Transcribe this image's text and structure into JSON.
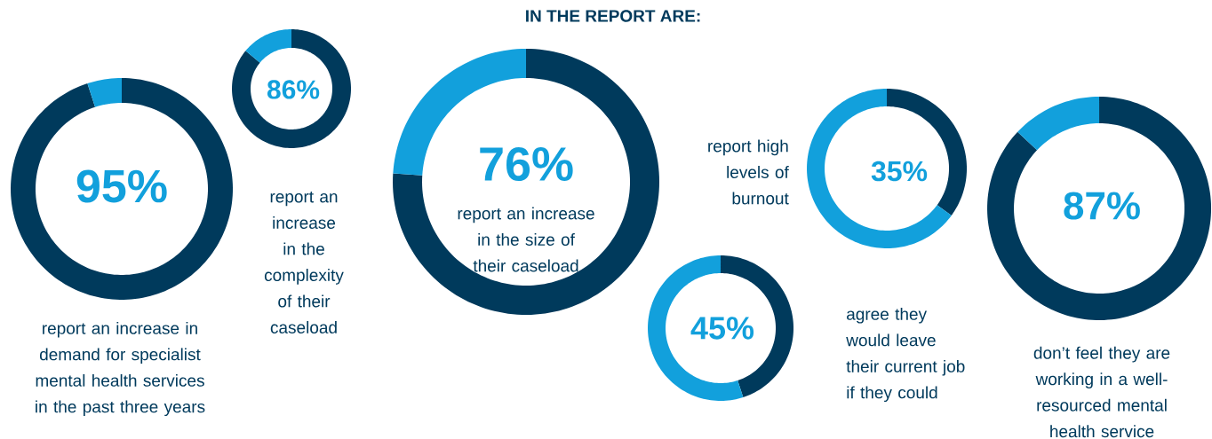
{
  "chart_data": [
    {
      "type": "donut",
      "categories": [
        null,
        null
      ],
      "values": [
        95,
        5
      ],
      "colors": [
        "#003a5c",
        "#12a0dc"
      ],
      "value_labels": [
        "95%",
        null
      ],
      "annotations": [
        "report an increase in demand for specialist mental health services in the past three years"
      ]
    },
    {
      "type": "donut",
      "categories": [
        null,
        null
      ],
      "values": [
        86,
        14
      ],
      "colors": [
        "#003a5c",
        "#12a0dc"
      ],
      "value_labels": [
        "86%",
        null
      ],
      "annotations": [
        "report an increase in the complexity of their caseload"
      ]
    },
    {
      "type": "donut",
      "categories": [
        null,
        null
      ],
      "values": [
        76,
        24
      ],
      "colors": [
        "#003a5c",
        "#12a0dc"
      ],
      "value_labels": [
        "76%",
        null
      ],
      "annotations": [
        "report an increase in the size of their caseload"
      ]
    },
    {
      "type": "donut",
      "categories": [
        null,
        null
      ],
      "values": [
        35,
        65
      ],
      "colors": [
        "#003a5c",
        "#12a0dc"
      ],
      "value_labels": [
        "35%",
        null
      ],
      "annotations": [
        "report high levels of burnout"
      ]
    },
    {
      "type": "donut",
      "categories": [
        null,
        null
      ],
      "values": [
        45,
        55
      ],
      "colors": [
        "#003a5c",
        "#12a0dc"
      ],
      "value_labels": [
        "45%",
        null
      ],
      "annotations": [
        "agree they would leave their current job if they could"
      ]
    },
    {
      "type": "donut",
      "categories": [
        null,
        null
      ],
      "values": [
        87,
        13
      ],
      "colors": [
        "#003a5c",
        "#12a0dc"
      ],
      "value_labels": [
        "87%",
        null
      ],
      "annotations": [
        "don’t feel they are working in a well-resourced mental health service"
      ]
    },
    {
      "type": "other",
      "title": "IN THE REPORT ARE:"
    }
  ]
}
